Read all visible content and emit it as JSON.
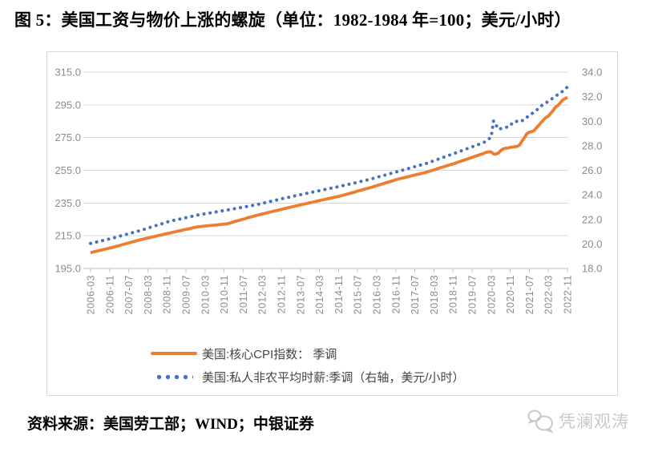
{
  "title": "图 5：美国工资与物价上涨的螺旋（单位：1982-1984 年=100；美元/小时）",
  "source_note": "资料来源：美国劳工部；WIND；中银证券",
  "watermark": {
    "text": "凭澜观涛",
    "icon": "chat-bubbles-logo-icon"
  },
  "colors": {
    "cpi_line": "#ED7D31",
    "wage_line": "#4472C4",
    "grid": "#D9D9D9",
    "axis": "#BFBFBF",
    "axis_label": "#8C8C8C",
    "legend_text": "#444444",
    "border": "#D9D9D9",
    "watermark": "#C8C8C8"
  },
  "chart_data": {
    "type": "line",
    "frequency": "monthly",
    "x_start": "2006-03",
    "x_end": "2022-11",
    "x_tick_every_n_months": 8,
    "x_tick_labels": [
      "2006-03",
      "2006-11",
      "2007-07",
      "2008-03",
      "2008-11",
      "2009-07",
      "2010-03",
      "2010-11",
      "2011-07",
      "2012-03",
      "2012-11",
      "2013-07",
      "2014-03",
      "2014-11",
      "2015-07",
      "2016-03",
      "2016-11",
      "2017-07",
      "2018-03",
      "2018-11",
      "2019-07",
      "2020-03",
      "2020-11",
      "2021-07",
      "2022-03",
      "2022-11"
    ],
    "left_axis": {
      "min": 195,
      "max": 315,
      "tick_labels": [
        "315.0",
        "295.0",
        "275.0",
        "255.0",
        "235.0",
        "215.0",
        "195.0"
      ]
    },
    "right_axis": {
      "min": 18,
      "max": 34,
      "tick_labels": [
        "34.0",
        "32.0",
        "30.0",
        "28.0",
        "26.0",
        "24.0",
        "22.0",
        "20.0",
        "18.0"
      ]
    },
    "grid": "horizontal",
    "legend_position": "bottom",
    "series": [
      {
        "name": "美国:核心CPI指数： 季调",
        "axis": "left",
        "style": "solid",
        "color": "#ED7D31",
        "values": [
          204.7,
          205.0,
          205.4,
          205.7,
          206.1,
          206.4,
          206.8,
          207.1,
          207.5,
          207.8,
          208.2,
          208.6,
          209.0,
          209.4,
          209.8,
          210.2,
          210.6,
          211.0,
          211.4,
          211.8,
          212.2,
          212.6,
          212.9,
          213.3,
          213.6,
          213.9,
          214.3,
          214.6,
          215.0,
          215.3,
          215.6,
          216.0,
          216.3,
          216.6,
          216.9,
          217.3,
          217.6,
          217.9,
          218.2,
          218.6,
          218.9,
          219.2,
          219.5,
          219.9,
          220.2,
          220.5,
          220.6,
          220.8,
          220.9,
          221.1,
          221.2,
          221.4,
          221.5,
          221.6,
          221.8,
          221.9,
          222.1,
          222.2,
          222.6,
          223.0,
          223.5,
          223.9,
          224.3,
          224.7,
          225.1,
          225.5,
          226.0,
          226.4,
          226.8,
          227.2,
          227.6,
          227.9,
          228.3,
          228.6,
          229.0,
          229.4,
          229.7,
          230.1,
          230.4,
          230.8,
          231.1,
          231.5,
          231.8,
          232.2,
          232.5,
          232.8,
          233.2,
          233.5,
          233.8,
          234.2,
          234.5,
          234.8,
          235.2,
          235.5,
          235.8,
          236.2,
          236.5,
          236.8,
          237.1,
          237.5,
          237.8,
          238.1,
          238.4,
          238.8,
          239.1,
          239.4,
          239.8,
          240.2,
          240.6,
          241.0,
          241.4,
          241.8,
          242.3,
          242.7,
          243.1,
          243.5,
          243.9,
          244.3,
          244.7,
          245.2,
          245.6,
          246.1,
          246.5,
          247.0,
          247.4,
          247.8,
          248.3,
          248.7,
          249.2,
          249.6,
          250.0,
          250.3,
          250.7,
          251.0,
          251.4,
          251.8,
          252.1,
          252.5,
          252.8,
          253.2,
          253.5,
          253.9,
          254.4,
          254.8,
          255.3,
          255.7,
          256.2,
          256.7,
          257.1,
          257.6,
          258.0,
          258.5,
          258.9,
          259.4,
          259.9,
          260.4,
          260.9,
          261.4,
          261.9,
          262.4,
          262.9,
          263.4,
          263.9,
          264.4,
          264.9,
          265.4,
          266.0,
          266.3,
          266.2,
          265.0,
          264.9,
          265.5,
          267.0,
          268.0,
          268.5,
          268.6,
          269.0,
          269.2,
          269.4,
          269.7,
          270.6,
          273.0,
          275.0,
          277.4,
          278.3,
          278.6,
          279.3,
          281.0,
          282.5,
          284.3,
          285.9,
          287.3,
          288.2,
          289.9,
          291.6,
          293.7,
          294.6,
          296.3,
          298.0,
          298.8,
          299.6
        ]
      },
      {
        "name": "美国:私人非农平均时薪:季调（右轴，美元/小时）",
        "axis": "right",
        "style": "dotted",
        "color": "#4472C4",
        "values": [
          20.04,
          20.09,
          20.13,
          20.18,
          20.23,
          20.27,
          20.32,
          20.37,
          20.41,
          20.46,
          20.51,
          20.57,
          20.62,
          20.67,
          20.73,
          20.78,
          20.83,
          20.89,
          20.94,
          20.99,
          21.05,
          21.1,
          21.16,
          21.22,
          21.29,
          21.35,
          21.41,
          21.47,
          21.53,
          21.59,
          21.65,
          21.72,
          21.78,
          21.84,
          21.88,
          21.93,
          21.97,
          22.01,
          22.06,
          22.1,
          22.14,
          22.19,
          22.23,
          22.27,
          22.32,
          22.36,
          22.39,
          22.43,
          22.46,
          22.49,
          22.52,
          22.56,
          22.59,
          22.62,
          22.65,
          22.69,
          22.72,
          22.75,
          22.79,
          22.82,
          22.86,
          22.89,
          22.93,
          22.96,
          23.0,
          23.03,
          23.07,
          23.1,
          23.14,
          23.17,
          23.22,
          23.26,
          23.31,
          23.35,
          23.4,
          23.45,
          23.49,
          23.54,
          23.58,
          23.63,
          23.67,
          23.72,
          23.76,
          23.8,
          23.85,
          23.89,
          23.93,
          23.97,
          24.01,
          24.05,
          24.09,
          24.14,
          24.18,
          24.22,
          24.26,
          24.3,
          24.34,
          24.38,
          24.42,
          24.47,
          24.51,
          24.55,
          24.59,
          24.63,
          24.67,
          24.71,
          24.76,
          24.8,
          24.85,
          24.89,
          24.94,
          24.98,
          25.03,
          25.08,
          25.12,
          25.17,
          25.21,
          25.26,
          25.31,
          25.37,
          25.42,
          25.48,
          25.53,
          25.58,
          25.64,
          25.69,
          25.75,
          25.8,
          25.86,
          25.91,
          25.97,
          26.02,
          26.08,
          26.13,
          26.19,
          26.24,
          26.3,
          26.35,
          26.41,
          26.46,
          26.52,
          26.57,
          26.64,
          26.71,
          26.78,
          26.85,
          26.92,
          26.99,
          27.06,
          27.13,
          27.2,
          27.27,
          27.34,
          27.41,
          27.48,
          27.55,
          27.62,
          27.7,
          27.77,
          27.84,
          27.91,
          27.98,
          28.05,
          28.13,
          28.2,
          28.27,
          28.43,
          28.56,
          28.69,
          30.03,
          29.71,
          29.35,
          29.39,
          29.43,
          29.5,
          29.53,
          29.61,
          29.91,
          29.96,
          30.0,
          29.94,
          30.04,
          30.22,
          30.33,
          30.46,
          30.6,
          30.76,
          30.9,
          31.06,
          31.25,
          31.42,
          31.5,
          31.62,
          31.76,
          31.9,
          32.03,
          32.18,
          32.31,
          32.44,
          32.6,
          32.8
        ]
      }
    ]
  }
}
